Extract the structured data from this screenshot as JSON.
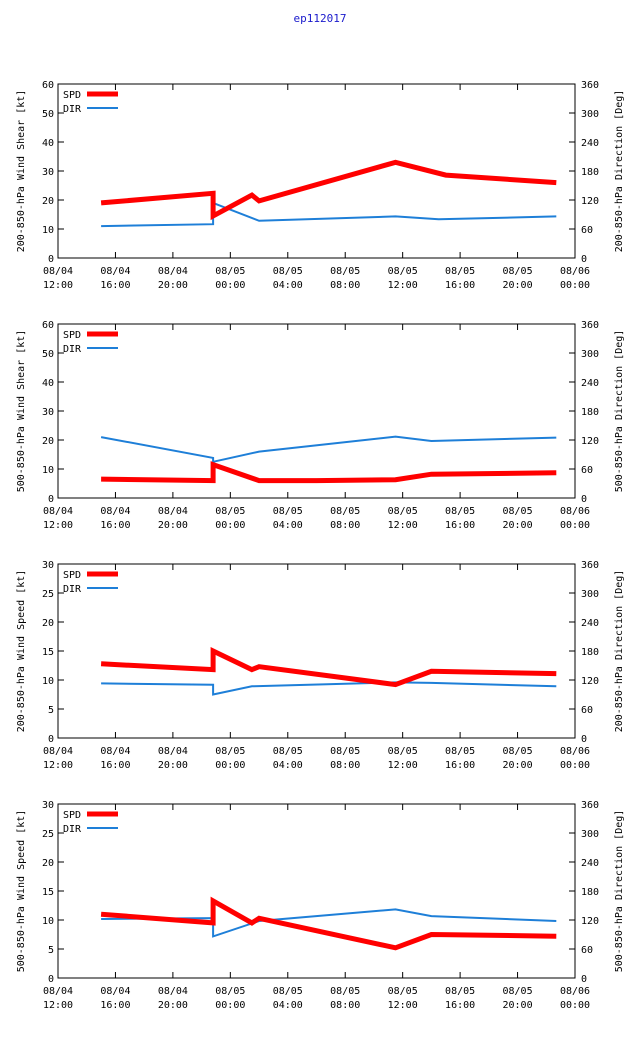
{
  "title": "ep112017",
  "colors": {
    "spd": "#ff0000",
    "dir": "#1e7fd8",
    "title": "#1a1acc"
  },
  "chart_data": [
    {
      "type": "line",
      "ylabel": "200-850-hPa Wind Shear [kt]",
      "y2label": "200-850-hPa Direction [Deg]",
      "ylim": [
        0,
        60
      ],
      "yticks": [
        0,
        10,
        20,
        30,
        40,
        50,
        60
      ],
      "y2lim": [
        0,
        360
      ],
      "y2ticks": [
        0,
        60,
        120,
        180,
        240,
        300,
        360
      ],
      "xlim": [
        0,
        36
      ],
      "xticks": [
        {
          "x": 0,
          "l1": "08/04",
          "l2": "12:00"
        },
        {
          "x": 4,
          "l1": "08/04",
          "l2": "16:00"
        },
        {
          "x": 8,
          "l1": "08/04",
          "l2": "20:00"
        },
        {
          "x": 12,
          "l1": "08/05",
          "l2": "00:00"
        },
        {
          "x": 16,
          "l1": "08/05",
          "l2": "04:00"
        },
        {
          "x": 20,
          "l1": "08/05",
          "l2": "08:00"
        },
        {
          "x": 24,
          "l1": "08/05",
          "l2": "12:00"
        },
        {
          "x": 28,
          "l1": "08/05",
          "l2": "16:00"
        },
        {
          "x": 32,
          "l1": "08/05",
          "l2": "20:00"
        },
        {
          "x": 36,
          "l1": "08/06",
          "l2": "00:00"
        }
      ],
      "legend": [
        "SPD",
        "DIR"
      ],
      "series": [
        {
          "name": "SPD",
          "axis": "left",
          "points": [
            [
              3,
              19
            ],
            [
              10.8,
              22.3
            ],
            [
              10.8,
              14.5
            ],
            [
              13.5,
              21.7
            ],
            [
              14,
              19.7
            ],
            [
              23.5,
              33
            ],
            [
              27,
              28.6
            ],
            [
              34.7,
              26
            ]
          ]
        },
        {
          "name": "DIR",
          "axis": "right",
          "points": [
            [
              3,
              66
            ],
            [
              10.8,
              70
            ],
            [
              10.8,
              114
            ],
            [
              14,
              77
            ],
            [
              23.5,
              86
            ],
            [
              26.5,
              80
            ],
            [
              34.7,
              86
            ]
          ]
        }
      ]
    },
    {
      "type": "line",
      "ylabel": "500-850-hPa Wind Shear [kt]",
      "y2label": "500-850-hPa Direction [Deg]",
      "ylim": [
        0,
        60
      ],
      "yticks": [
        0,
        10,
        20,
        30,
        40,
        50,
        60
      ],
      "y2lim": [
        0,
        360
      ],
      "y2ticks": [
        0,
        60,
        120,
        180,
        240,
        300,
        360
      ],
      "xlim": [
        0,
        36
      ],
      "xticks": [
        {
          "x": 0,
          "l1": "08/04",
          "l2": "12:00"
        },
        {
          "x": 4,
          "l1": "08/04",
          "l2": "16:00"
        },
        {
          "x": 8,
          "l1": "08/04",
          "l2": "20:00"
        },
        {
          "x": 12,
          "l1": "08/05",
          "l2": "00:00"
        },
        {
          "x": 16,
          "l1": "08/05",
          "l2": "04:00"
        },
        {
          "x": 20,
          "l1": "08/05",
          "l2": "08:00"
        },
        {
          "x": 24,
          "l1": "08/05",
          "l2": "12:00"
        },
        {
          "x": 28,
          "l1": "08/05",
          "l2": "16:00"
        },
        {
          "x": 32,
          "l1": "08/05",
          "l2": "20:00"
        },
        {
          "x": 36,
          "l1": "08/06",
          "l2": "00:00"
        }
      ],
      "legend": [
        "SPD",
        "DIR"
      ],
      "series": [
        {
          "name": "SPD",
          "axis": "left",
          "points": [
            [
              3,
              6.5
            ],
            [
              10.8,
              6
            ],
            [
              10.8,
              11.5
            ],
            [
              14,
              6
            ],
            [
              18,
              6
            ],
            [
              23.5,
              6.3
            ],
            [
              26,
              8.2
            ],
            [
              34.7,
              8.7
            ]
          ]
        },
        {
          "name": "DIR",
          "axis": "right",
          "points": [
            [
              3,
              126
            ],
            [
              10.8,
              83
            ],
            [
              10.8,
              75
            ],
            [
              14,
              96
            ],
            [
              23.5,
              127
            ],
            [
              26,
              118
            ],
            [
              34.7,
              125
            ]
          ]
        }
      ]
    },
    {
      "type": "line",
      "ylabel": "200-850-hPa Wind Speed [kt]",
      "y2label": "200-850-hPa Direction [Deg]",
      "ylim": [
        0,
        30
      ],
      "yticks": [
        0,
        5,
        10,
        15,
        20,
        25,
        30
      ],
      "y2lim": [
        0,
        360
      ],
      "y2ticks": [
        0,
        60,
        120,
        180,
        240,
        300,
        360
      ],
      "xlim": [
        0,
        36
      ],
      "xticks": [
        {
          "x": 0,
          "l1": "08/04",
          "l2": "12:00"
        },
        {
          "x": 4,
          "l1": "08/04",
          "l2": "16:00"
        },
        {
          "x": 8,
          "l1": "08/04",
          "l2": "20:00"
        },
        {
          "x": 12,
          "l1": "08/05",
          "l2": "00:00"
        },
        {
          "x": 16,
          "l1": "08/05",
          "l2": "04:00"
        },
        {
          "x": 20,
          "l1": "08/05",
          "l2": "08:00"
        },
        {
          "x": 24,
          "l1": "08/05",
          "l2": "12:00"
        },
        {
          "x": 28,
          "l1": "08/05",
          "l2": "16:00"
        },
        {
          "x": 32,
          "l1": "08/05",
          "l2": "20:00"
        },
        {
          "x": 36,
          "l1": "08/06",
          "l2": "00:00"
        }
      ],
      "legend": [
        "SPD",
        "DIR"
      ],
      "series": [
        {
          "name": "SPD",
          "axis": "left",
          "points": [
            [
              3,
              12.8
            ],
            [
              10.8,
              11.8
            ],
            [
              10.8,
              15
            ],
            [
              13.5,
              11.8
            ],
            [
              14,
              12.3
            ],
            [
              23.5,
              9.2
            ],
            [
              26,
              11.5
            ],
            [
              34.7,
              11.1
            ]
          ]
        },
        {
          "name": "DIR",
          "axis": "right",
          "points": [
            [
              3,
              113
            ],
            [
              10.8,
              110
            ],
            [
              10.8,
              90
            ],
            [
              13.5,
              107
            ],
            [
              23.5,
              115
            ],
            [
              26,
              114
            ],
            [
              34.7,
              107
            ]
          ]
        }
      ]
    },
    {
      "type": "line",
      "ylabel": "500-850-hPa Wind Speed [kt]",
      "y2label": "500-850-hPa Direction [Deg]",
      "ylim": [
        0,
        30
      ],
      "yticks": [
        0,
        5,
        10,
        15,
        20,
        25,
        30
      ],
      "y2lim": [
        0,
        360
      ],
      "y2ticks": [
        0,
        60,
        120,
        180,
        240,
        300,
        360
      ],
      "xlim": [
        0,
        36
      ],
      "xticks": [
        {
          "x": 0,
          "l1": "08/04",
          "l2": "12:00"
        },
        {
          "x": 4,
          "l1": "08/04",
          "l2": "16:00"
        },
        {
          "x": 8,
          "l1": "08/04",
          "l2": "20:00"
        },
        {
          "x": 12,
          "l1": "08/05",
          "l2": "00:00"
        },
        {
          "x": 16,
          "l1": "08/05",
          "l2": "04:00"
        },
        {
          "x": 20,
          "l1": "08/05",
          "l2": "08:00"
        },
        {
          "x": 24,
          "l1": "08/05",
          "l2": "12:00"
        },
        {
          "x": 28,
          "l1": "08/05",
          "l2": "16:00"
        },
        {
          "x": 32,
          "l1": "08/05",
          "l2": "20:00"
        },
        {
          "x": 36,
          "l1": "08/06",
          "l2": "00:00"
        }
      ],
      "legend": [
        "SPD",
        "DIR"
      ],
      "series": [
        {
          "name": "SPD",
          "axis": "left",
          "points": [
            [
              3,
              11
            ],
            [
              10.8,
              9.5
            ],
            [
              10.8,
              13.3
            ],
            [
              13.5,
              9.5
            ],
            [
              14,
              10.3
            ],
            [
              23.5,
              5.2
            ],
            [
              26,
              7.5
            ],
            [
              34.7,
              7.2
            ]
          ]
        },
        {
          "name": "DIR",
          "axis": "right",
          "points": [
            [
              3,
              122
            ],
            [
              10.8,
              124
            ],
            [
              10.8,
              86
            ],
            [
              14,
              118
            ],
            [
              23.5,
              142
            ],
            [
              26,
              128
            ],
            [
              34.7,
              118
            ]
          ]
        }
      ]
    }
  ]
}
